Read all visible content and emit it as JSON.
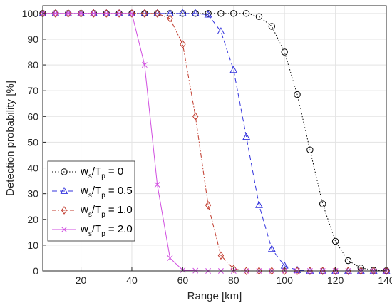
{
  "chart_data": {
    "type": "line",
    "xlabel": "Range [km]",
    "ylabel": "Detection probability [%]",
    "xlim": [
      5,
      140
    ],
    "ylim": [
      0,
      103
    ],
    "xticks": [
      20,
      40,
      60,
      80,
      100,
      120,
      140
    ],
    "yticks": [
      0,
      10,
      20,
      30,
      40,
      50,
      60,
      70,
      80,
      90,
      100
    ],
    "grid": true,
    "legend_position": "lower-left",
    "x": [
      5,
      10,
      15,
      20,
      25,
      30,
      35,
      40,
      45,
      50,
      55,
      60,
      65,
      70,
      75,
      80,
      85,
      90,
      95,
      100,
      105,
      110,
      115,
      120,
      125,
      130,
      135,
      140
    ],
    "series": [
      {
        "label_main": "w",
        "label_sub1": "s",
        "label_mid": "/T",
        "label_sub2": "p",
        "label_value": "= 0",
        "color": "#000000",
        "marker": "circle",
        "dash": "1.5,2.5",
        "values": [
          100,
          100,
          100,
          100,
          100,
          100,
          100,
          100,
          100,
          100,
          100,
          100,
          100,
          100,
          100,
          100,
          100,
          98.8,
          95,
          85,
          68.5,
          47,
          26,
          11.5,
          4,
          1.2,
          0.3,
          0.1
        ]
      },
      {
        "label_main": "w",
        "label_sub1": "s",
        "label_mid": "/T",
        "label_sub2": "p",
        "label_value": "= 0.5",
        "color": "#3333dd",
        "marker": "triangle",
        "dash": "7,4",
        "values": [
          100,
          100,
          100,
          100,
          100,
          100,
          100,
          100,
          100,
          100,
          100,
          100,
          100,
          99.5,
          93,
          78,
          52,
          25.5,
          8.5,
          2,
          0.3,
          0,
          0,
          0,
          0,
          0,
          0,
          0
        ]
      },
      {
        "label_main": "w",
        "label_sub1": "s",
        "label_mid": "/T",
        "label_sub2": "p",
        "label_value": "= 1.0",
        "color": "#c0392b",
        "marker": "diamond",
        "dash": "6,2.5,1.5,2.5",
        "values": [
          100,
          100,
          100,
          100,
          100,
          100,
          100,
          100,
          100,
          100,
          98,
          88,
          60,
          25.5,
          6,
          0.8,
          0,
          0,
          0,
          0,
          0,
          0,
          0,
          0,
          0,
          0,
          0,
          0
        ]
      },
      {
        "label_main": "w",
        "label_sub1": "s",
        "label_mid": "/T",
        "label_sub2": "p",
        "label_value": "= 2.0",
        "color": "#d14fe0",
        "marker": "x",
        "dash": "",
        "values": [
          100,
          100,
          100,
          100,
          100,
          100,
          100,
          100,
          80,
          33.5,
          5,
          0.3,
          0.1,
          0,
          0,
          0,
          0,
          0,
          0,
          0,
          0,
          0,
          0,
          0,
          0,
          0,
          0,
          0
        ]
      }
    ]
  }
}
